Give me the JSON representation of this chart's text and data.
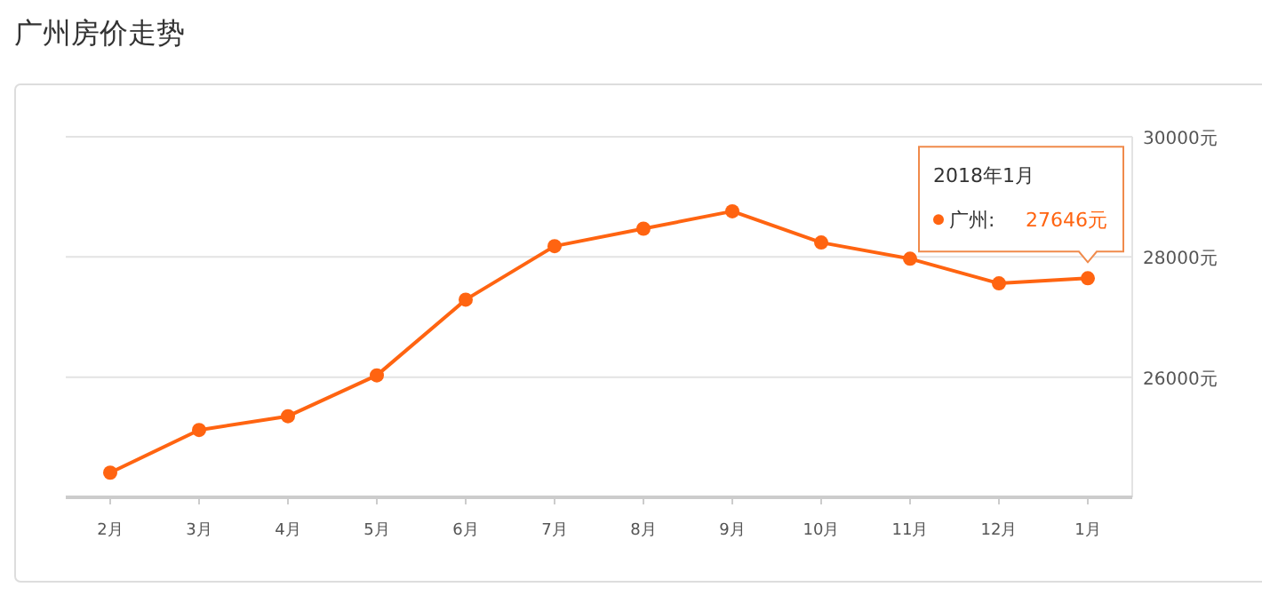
{
  "chart_data": {
    "type": "line",
    "title": "广州房价走势",
    "categories": [
      "2月",
      "3月",
      "4月",
      "5月",
      "6月",
      "7月",
      "8月",
      "9月",
      "10月",
      "11月",
      "12月",
      "1月"
    ],
    "series": [
      {
        "name": "广州:",
        "color": "#ff6411",
        "values": [
          24410,
          25120,
          25350,
          26030,
          27290,
          28180,
          28470,
          28760,
          28240,
          27970,
          27560,
          27646
        ],
        "value_labels": [
          null,
          null,
          null,
          null,
          null,
          null,
          null,
          null,
          null,
          null,
          null,
          "27646元"
        ]
      }
    ],
    "ylim": [
      24000,
      30000
    ],
    "yticks": [
      {
        "value": 24000,
        "label": null
      },
      {
        "value": 26000,
        "label": "26000元"
      },
      {
        "value": 28000,
        "label": "28000元"
      },
      {
        "value": 30000,
        "label": "30000元"
      }
    ],
    "grid": "y",
    "marker": "circle",
    "line_style": "solid",
    "legend": "top right",
    "annotations": [
      "2018年1月"
    ]
  }
}
